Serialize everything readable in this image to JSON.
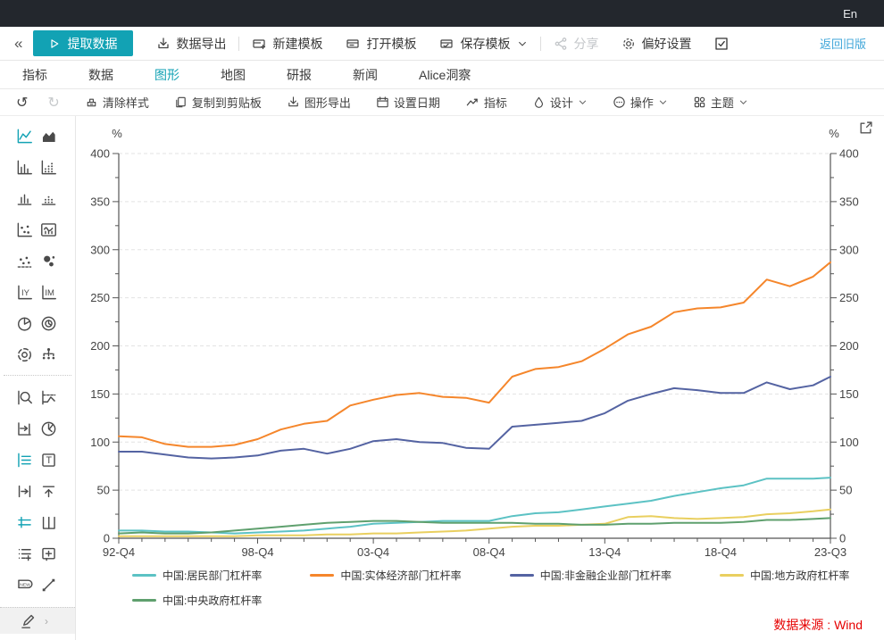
{
  "topbar": {
    "lang": "En"
  },
  "icons": {
    "undo": "↺",
    "redo": "↻",
    "collapse": "«",
    "footer_chevron": "›"
  },
  "toolbar": {
    "extract": "提取数据",
    "export": "数据导出",
    "new_template": "新建模板",
    "open_template": "打开模板",
    "save_template": "保存模板",
    "share": "分享",
    "preferences": "偏好设置",
    "back_old": "返回旧版"
  },
  "tabs": {
    "active_index": 2,
    "items": [
      "指标",
      "数据",
      "图形",
      "地图",
      "研报",
      "新闻",
      "Alice洞察"
    ]
  },
  "chart_toolbar": {
    "items": [
      {
        "label": "清除样式",
        "icon": "stamp-icon",
        "dropdown": false
      },
      {
        "label": "复制到剪贴板",
        "icon": "copy-icon",
        "dropdown": false
      },
      {
        "label": "图形导出",
        "icon": "download-icon",
        "dropdown": false
      },
      {
        "label": "设置日期",
        "icon": "calendar-icon",
        "dropdown": false
      },
      {
        "label": "指标",
        "icon": "indicator-icon",
        "dropdown": false
      },
      {
        "label": "设计",
        "icon": "design-icon",
        "dropdown": true
      },
      {
        "label": "操作",
        "icon": "operate-icon",
        "dropdown": true
      },
      {
        "label": "主题",
        "icon": "theme-icon",
        "dropdown": true
      }
    ]
  },
  "sidebar": {
    "sections": [
      {
        "items": [
          {
            "name": "line-chart",
            "active": true
          },
          {
            "name": "area-chart",
            "active": false
          },
          {
            "name": "bar-chart-axis",
            "active": false
          },
          {
            "name": "dotted-bar-chart",
            "active": false
          },
          {
            "name": "bar-chart",
            "active": false
          },
          {
            "name": "dotted-bars",
            "active": false
          },
          {
            "name": "scatter-axis",
            "active": false
          },
          {
            "name": "candlestick-chart",
            "active": false
          },
          {
            "name": "scatter",
            "active": false
          },
          {
            "name": "bubble-chart",
            "active": false
          },
          {
            "name": "combo-year-chart",
            "active": false
          },
          {
            "name": "combo-month-chart",
            "active": false
          },
          {
            "name": "pie-chart",
            "active": false
          },
          {
            "name": "radar-chart",
            "active": false
          },
          {
            "name": "doughnut-chart",
            "active": false
          },
          {
            "name": "tree-diagram",
            "active": false
          }
        ]
      },
      {
        "items": [
          {
            "name": "zoom-search",
            "active": false
          },
          {
            "name": "forecast-chart",
            "active": false
          },
          {
            "name": "export-data",
            "active": false
          },
          {
            "name": "time-pie",
            "active": false
          },
          {
            "name": "data-list",
            "active": true
          },
          {
            "name": "text-label",
            "active": false
          },
          {
            "name": "range-select",
            "active": false
          },
          {
            "name": "upload-top",
            "active": false
          },
          {
            "name": "align-lines",
            "active": true
          },
          {
            "name": "column-lines",
            "active": false
          },
          {
            "name": "list-add",
            "active": false
          },
          {
            "name": "box-add",
            "active": false
          },
          {
            "name": "new-feature",
            "active": false
          },
          {
            "name": "trend-line",
            "active": false
          }
        ]
      }
    ]
  },
  "chart_data": {
    "type": "line",
    "title": "",
    "ylabel_left": "%",
    "ylabel_right": "%",
    "ylim": [
      0,
      400
    ],
    "ytick_step": 50,
    "ytick_minor_step": 25,
    "ytick_labels": [
      "0",
      "50",
      "100",
      "150",
      "200",
      "250",
      "300",
      "350",
      "400"
    ],
    "grid": "dashed-horizontal",
    "legend_position": "bottom",
    "x_points": [
      "92-Q4",
      "93-Q4",
      "94-Q4",
      "95-Q4",
      "96-Q4",
      "97-Q4",
      "98-Q4",
      "99-Q4",
      "00-Q4",
      "01-Q4",
      "02-Q4",
      "03-Q4",
      "04-Q4",
      "05-Q4",
      "06-Q4",
      "07-Q4",
      "08-Q4",
      "09-Q4",
      "10-Q4",
      "11-Q4",
      "12-Q4",
      "13-Q4",
      "14-Q4",
      "15-Q4",
      "16-Q4",
      "17-Q4",
      "18-Q4",
      "19-Q4",
      "20-Q4",
      "21-Q4",
      "22-Q4",
      "23-Q3"
    ],
    "x_tick_labels": [
      "92-Q4",
      "98-Q4",
      "03-Q4",
      "08-Q4",
      "13-Q4",
      "18-Q4",
      "23-Q3"
    ],
    "x_tick_indices": [
      0,
      6,
      11,
      16,
      21,
      26,
      31
    ],
    "series": [
      {
        "name": "中国:居民部门杠杆率",
        "color": "#5CC2C4",
        "values": [
          8,
          8,
          7,
          7,
          6,
          5,
          6,
          7,
          8,
          10,
          12,
          15,
          16,
          17,
          18,
          18,
          18,
          23,
          26,
          27,
          30,
          33,
          36,
          39,
          44,
          48,
          52,
          55,
          62,
          62,
          62,
          63
        ]
      },
      {
        "name": "中国:实体经济部门杠杆率",
        "color": "#F5862B",
        "values": [
          106,
          105,
          98,
          95,
          95,
          97,
          103,
          113,
          119,
          122,
          138,
          144,
          149,
          151,
          147,
          146,
          141,
          168,
          176,
          178,
          184,
          197,
          212,
          220,
          235,
          239,
          240,
          245,
          269,
          262,
          272,
          287
        ]
      },
      {
        "name": "中国:非金融企业部门杠杆率",
        "color": "#5463A2",
        "values": [
          90,
          90,
          87,
          84,
          83,
          84,
          86,
          91,
          93,
          88,
          93,
          101,
          103,
          100,
          99,
          94,
          93,
          116,
          118,
          120,
          122,
          130,
          143,
          150,
          156,
          154,
          151,
          151,
          162,
          155,
          159,
          168
        ]
      },
      {
        "name": "中国:地方政府杠杆率",
        "color": "#E9CF5F",
        "values": [
          2,
          2,
          2,
          2,
          2,
          2,
          3,
          3,
          3,
          4,
          4,
          5,
          5,
          6,
          7,
          8,
          10,
          12,
          13,
          13,
          14,
          15,
          22,
          23,
          21,
          20,
          21,
          22,
          25,
          26,
          28,
          30
        ]
      },
      {
        "name": "中国:中央政府杠杆率",
        "color": "#5FA06E",
        "values": [
          5,
          6,
          5,
          5,
          6,
          8,
          10,
          12,
          14,
          16,
          17,
          18,
          18,
          17,
          16,
          16,
          16,
          16,
          15,
          15,
          14,
          14,
          15,
          15,
          16,
          16,
          16,
          17,
          19,
          19,
          20,
          21
        ]
      }
    ],
    "source": "数据来源 : Wind"
  }
}
